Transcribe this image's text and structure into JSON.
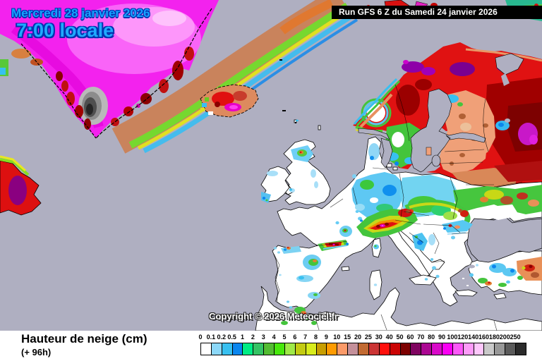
{
  "header": {
    "date_label": "Mercredi 28 janvier 2026",
    "time_label": "7:00 locale",
    "run_label": "Run GFS 6 Z du Samedi 24 janvier 2026"
  },
  "map": {
    "copyright": "Copyright © 2026 Meteociel.fr"
  },
  "footer": {
    "title": "Hauteur de neige (cm)",
    "subtitle": "(+ 96h)"
  },
  "legend": {
    "unit": "cm",
    "entries": [
      {
        "label": "0",
        "color": "#FFFFFF"
      },
      {
        "label": "0.1",
        "color": "#8CD8F8"
      },
      {
        "label": "0.2",
        "color": "#38C0F0"
      },
      {
        "label": "0.5",
        "color": "#0A86EE"
      },
      {
        "label": "1",
        "color": "#00EC84"
      },
      {
        "label": "2",
        "color": "#35C364"
      },
      {
        "label": "3",
        "color": "#53BC32"
      },
      {
        "label": "4",
        "color": "#47E80C"
      },
      {
        "label": "5",
        "color": "#9FE948"
      },
      {
        "label": "6",
        "color": "#C3CB12"
      },
      {
        "label": "7",
        "color": "#D8EC1C"
      },
      {
        "label": "8",
        "color": "#C89E00"
      },
      {
        "label": "9",
        "color": "#FF9B00"
      },
      {
        "label": "10",
        "color": "#FB9A68"
      },
      {
        "label": "15",
        "color": "#C4909A"
      },
      {
        "label": "20",
        "color": "#C26A32"
      },
      {
        "label": "25",
        "color": "#CB3434"
      },
      {
        "label": "30",
        "color": "#FF100C"
      },
      {
        "label": "40",
        "color": "#CB0404"
      },
      {
        "label": "50",
        "color": "#7D0101"
      },
      {
        "label": "60",
        "color": "#7F0460"
      },
      {
        "label": "70",
        "color": "#AB0792"
      },
      {
        "label": "80",
        "color": "#D909C9"
      },
      {
        "label": "90",
        "color": "#FB00F3"
      },
      {
        "label": "100",
        "color": "#FC59F8"
      },
      {
        "label": "120",
        "color": "#FD9BF9"
      },
      {
        "label": "140",
        "color": "#FEC7FC"
      },
      {
        "label": "160",
        "color": "#C9C9C9"
      },
      {
        "label": "180",
        "color": "#989898"
      },
      {
        "label": "200",
        "color": "#5B5B5B"
      },
      {
        "label": "250",
        "color": "#2B2B2B"
      }
    ]
  },
  "ui_colors": {
    "sea": "#AFAFC1",
    "land_no_snow": "#FFFFFF",
    "date_text": "#17A2FF",
    "date_outline": "#0433B0",
    "banner_bg": "#000000",
    "banner_text": "#FFFFFF"
  }
}
